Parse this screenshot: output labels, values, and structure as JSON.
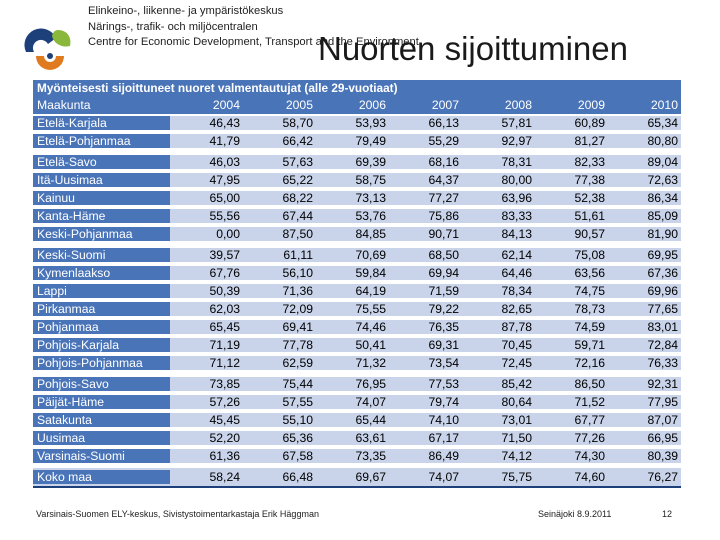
{
  "org_lines": [
    "Elinkeino-, liikenne- ja ympäristökeskus",
    "Närings-, trafik- och miljöcentralen",
    "Centre for Economic Development, Transport and the Environment"
  ],
  "slide_title": "Nuorten sijoittuminen",
  "table_title": "Myönteisesti sijoittuneet nuoret valmentautujat (alle 29-vuotiaat)",
  "header": [
    "Maakunta",
    "2004",
    "2005",
    "2006",
    "2007",
    "2008",
    "2009",
    "2010"
  ],
  "groups": [
    [
      [
        "Etelä-Karjala",
        "46,43",
        "58,70",
        "53,93",
        "66,13",
        "57,81",
        "60,89",
        "65,34"
      ],
      [
        "Etelä-Pohjanmaa",
        "41,79",
        "66,42",
        "79,49",
        "55,29",
        "92,97",
        "81,27",
        "80,80"
      ]
    ],
    [
      [
        "Etelä-Savo",
        "46,03",
        "57,63",
        "69,39",
        "68,16",
        "78,31",
        "82,33",
        "89,04"
      ],
      [
        "Itä-Uusimaa",
        "47,95",
        "65,22",
        "58,75",
        "64,37",
        "80,00",
        "77,38",
        "72,63"
      ],
      [
        "Kainuu",
        "65,00",
        "68,22",
        "73,13",
        "77,27",
        "63,96",
        "52,38",
        "86,34"
      ],
      [
        "Kanta-Häme",
        "55,56",
        "67,44",
        "53,76",
        "75,86",
        "83,33",
        "51,61",
        "85,09"
      ],
      [
        "Keski-Pohjanmaa",
        "0,00",
        "87,50",
        "84,85",
        "90,71",
        "84,13",
        "90,57",
        "81,90"
      ]
    ],
    [
      [
        "Keski-Suomi",
        "39,57",
        "61,11",
        "70,69",
        "68,50",
        "62,14",
        "75,08",
        "69,95"
      ],
      [
        "Kymenlaakso",
        "67,76",
        "56,10",
        "59,84",
        "69,94",
        "64,46",
        "63,56",
        "67,36"
      ],
      [
        "Lappi",
        "50,39",
        "71,36",
        "64,19",
        "71,59",
        "78,34",
        "74,75",
        "69,96"
      ],
      [
        "Pirkanmaa",
        "62,03",
        "72,09",
        "75,55",
        "79,22",
        "82,65",
        "78,73",
        "77,65"
      ],
      [
        "Pohjanmaa",
        "65,45",
        "69,41",
        "74,46",
        "76,35",
        "87,78",
        "74,59",
        "83,01"
      ],
      [
        "Pohjois-Karjala",
        "71,19",
        "77,78",
        "50,41",
        "69,31",
        "70,45",
        "59,71",
        "72,84"
      ],
      [
        "Pohjois-Pohjanmaa",
        "71,12",
        "62,59",
        "71,32",
        "73,54",
        "72,45",
        "72,16",
        "76,33"
      ]
    ],
    [
      [
        "Pohjois-Savo",
        "73,85",
        "75,44",
        "76,95",
        "77,53",
        "85,42",
        "86,50",
        "92,31"
      ],
      [
        "Päijät-Häme",
        "57,26",
        "57,55",
        "74,07",
        "79,74",
        "80,64",
        "71,52",
        "77,95"
      ],
      [
        "Satakunta",
        "45,45",
        "55,10",
        "65,44",
        "74,10",
        "73,01",
        "67,77",
        "87,07"
      ],
      [
        "Uusimaa",
        "52,20",
        "65,36",
        "63,61",
        "67,17",
        "71,50",
        "77,26",
        "66,95"
      ],
      [
        "Varsinais-Suomi",
        "61,36",
        "67,58",
        "73,35",
        "86,49",
        "74,12",
        "74,30",
        "80,39"
      ]
    ]
  ],
  "total": [
    "Koko maa",
    "58,24",
    "66,48",
    "69,67",
    "74,07",
    "75,75",
    "74,60",
    "76,27"
  ],
  "footer_left": "Varsinais-Suomen ELY-keskus, Sivistystoimentarkastaja Erik Häggman",
  "footer_date": "Seinäjoki 8.9.2011",
  "footer_page": "12"
}
